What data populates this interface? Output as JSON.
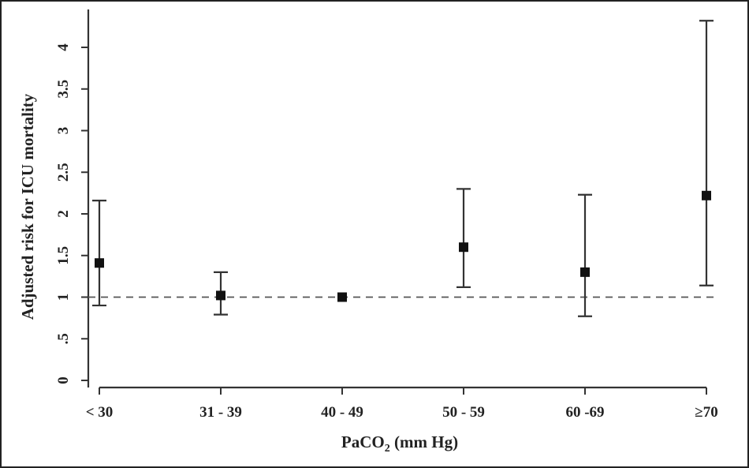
{
  "chart_data": {
    "type": "scatter",
    "title": "",
    "xlabel": {
      "main": "PaCO",
      "subscript": "2",
      "suffix": " (mm Hg)"
    },
    "ylabel": "Adjusted risk for ICU mortality",
    "categories": [
      "< 30",
      "31 - 39",
      "40 - 49",
      "50 - 59",
      "60 -69",
      "≥70"
    ],
    "y_ticks": [
      0,
      0.5,
      1,
      1.5,
      2,
      2.5,
      3,
      3.5,
      4
    ],
    "y_tick_labels": [
      "0",
      ".5",
      "1",
      "1.5",
      "2",
      "2.5",
      "3",
      "3.5",
      "4"
    ],
    "ylim": [
      -0.05,
      4.4
    ],
    "reference_line": 1,
    "series": [
      {
        "estimate": [
          1.41,
          1.02,
          1.0,
          1.6,
          1.3,
          2.22
        ],
        "lower": [
          0.9,
          0.79,
          null,
          1.12,
          0.77,
          1.14
        ],
        "upper": [
          2.16,
          1.3,
          null,
          2.3,
          2.23,
          4.32
        ]
      }
    ],
    "grid": false,
    "legend": "none"
  }
}
